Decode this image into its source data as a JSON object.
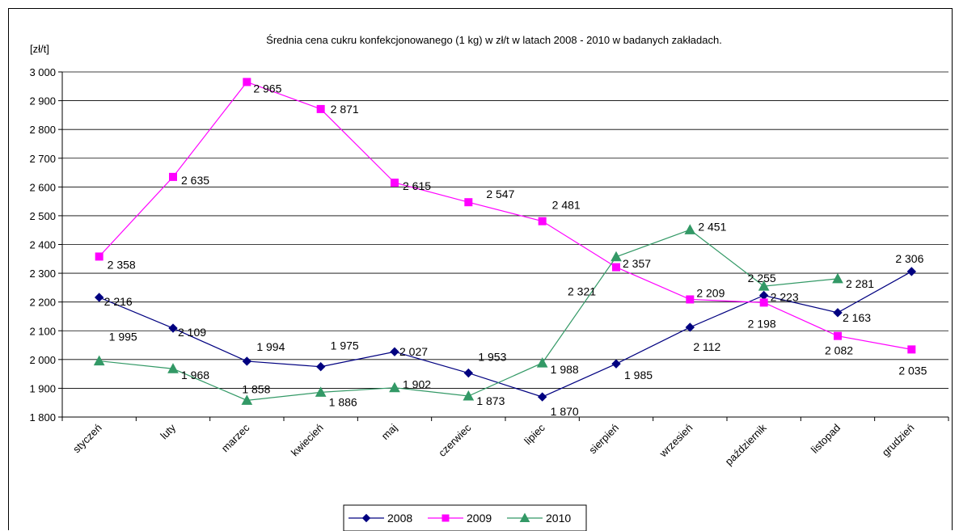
{
  "chart_data": {
    "type": "line",
    "title": "Średnia cena cukru konfekcjonowanego (1 kg) w zł/t w latach 2008 - 2010  w badanych zakładach.",
    "ylabel": "[zł/t]",
    "ylim": [
      1800,
      3000
    ],
    "yticks": [
      1800,
      1900,
      2000,
      2100,
      2200,
      2300,
      2400,
      2500,
      2600,
      2700,
      2800,
      2900,
      3000
    ],
    "ytick_labels": [
      "1 800",
      "1 900",
      "2 000",
      "2 100",
      "2 200",
      "2 300",
      "2 400",
      "2 500",
      "2 600",
      "2 700",
      "2 800",
      "2 900",
      "3 000"
    ],
    "grid": true,
    "legend_position": "bottom",
    "categories": [
      "styczeń",
      "luty",
      "marzec",
      "kwiecień",
      "maj",
      "czerwiec",
      "lipiec",
      "sierpień",
      "wrzesień",
      "październik",
      "listopad",
      "grudzień"
    ],
    "series": [
      {
        "name": "2008",
        "color": "#000080",
        "marker": "diamond",
        "values": [
          2216,
          2109,
          1994,
          1975,
          2027,
          1953,
          1870,
          1985,
          2112,
          2223,
          2163,
          2306
        ],
        "labels": [
          "2 216",
          "2 109",
          "1 994",
          "1 975",
          "2 027",
          "1 953",
          "1 870",
          "1 985",
          "2 112",
          "2 223",
          "2 163",
          "2 306"
        ]
      },
      {
        "name": "2009",
        "color": "#ff00ff",
        "marker": "square",
        "values": [
          2358,
          2635,
          2965,
          2871,
          2615,
          2547,
          2481,
          2321,
          2209,
          2198,
          2082,
          2035
        ],
        "labels": [
          "2 358",
          "2 635",
          "2 965",
          "2 871",
          "2 615",
          "2 547",
          "2 481",
          "2 321",
          "2 209",
          "2 198",
          "2 082",
          "2 035"
        ]
      },
      {
        "name": "2010",
        "color": "#339966",
        "marker": "triangle",
        "values": [
          1995,
          1968,
          1858,
          1886,
          1902,
          1873,
          1988,
          2357,
          2451,
          2255,
          2281,
          null
        ],
        "labels": [
          "1 995",
          "1 968",
          "1 858",
          "1 886",
          "1 902",
          "1 873",
          "1 988",
          "2 357",
          "2 451",
          "2 255",
          "2 281",
          null
        ]
      }
    ]
  }
}
